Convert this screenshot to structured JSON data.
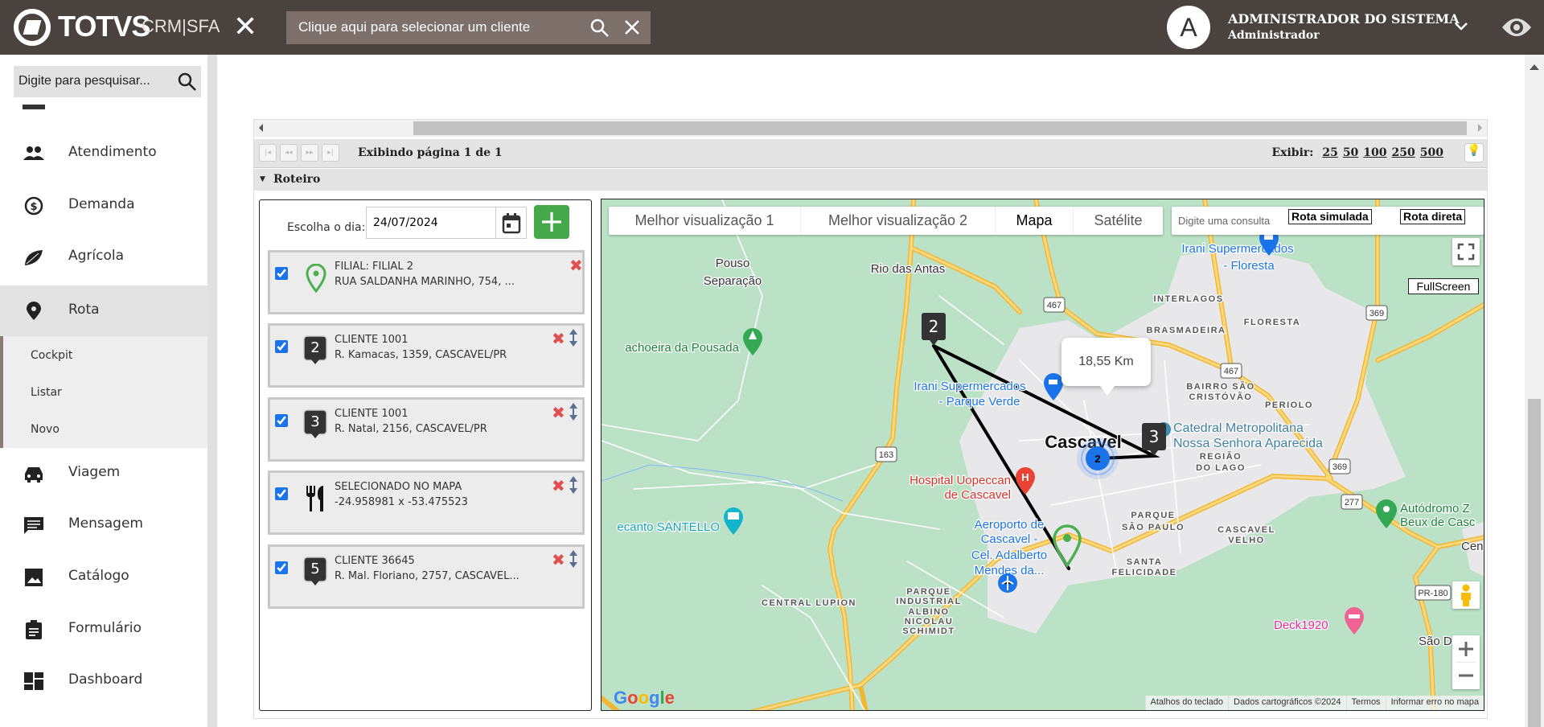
{
  "header": {
    "brand": "TOTVS",
    "product": "CRM|SFA",
    "client_search_placeholder": "Clique aqui para selecionar um cliente",
    "avatar_letter": "A",
    "user_name": "ADMINISTRADOR DO SISTEMA",
    "user_role": "Administrador"
  },
  "sidebar": {
    "search_placeholder": "Digite para pesquisar...",
    "items": [
      {
        "label": "Atendimento",
        "icon": "people-icon"
      },
      {
        "label": "Demanda",
        "icon": "money-cycle-icon"
      },
      {
        "label": "Agrícola",
        "icon": "leaf-icon"
      },
      {
        "label": "Rota",
        "icon": "location-pin-icon",
        "active": true
      },
      {
        "label": "Viagem",
        "icon": "car-icon"
      },
      {
        "label": "Mensagem",
        "icon": "message-icon"
      },
      {
        "label": "Catálogo",
        "icon": "image-icon"
      },
      {
        "label": "Formulário",
        "icon": "clipboard-icon"
      },
      {
        "label": "Dashboard",
        "icon": "dashboard-icon"
      }
    ],
    "rota_submenu": [
      "Cockpit",
      "Listar",
      "Novo"
    ]
  },
  "pager": {
    "info": "Exibindo página 1 de 1",
    "exibir_label": "Exibir:",
    "page_sizes": [
      "25",
      "50",
      "100",
      "250",
      "500"
    ]
  },
  "roteiro": {
    "title": "Roteiro",
    "day_label": "Escolha o dia:",
    "day_value": "24/07/2024",
    "add_label": "+",
    "stops": [
      {
        "marker": "pin",
        "title": "FILIAL: FILIAL 2",
        "address": "RUA SALDANHA MARINHO, 754, ...",
        "checked": true
      },
      {
        "marker": "2",
        "title": "CLIENTE 1001",
        "address": "R. Kamacas, 1359, CASCAVEL/PR",
        "checked": true
      },
      {
        "marker": "3",
        "title": "CLIENTE 1001",
        "address": "R. Natal, 2156, CASCAVEL/PR",
        "checked": true
      },
      {
        "marker": "restaurant",
        "title": "SELECIONADO NO MAPA",
        "address": "-24.958981 x -53.475523",
        "checked": true
      },
      {
        "marker": "5",
        "title": "CLIENTE 36645",
        "address": "R. Mal. Floriano, 2757, CASCAVEL...",
        "checked": true
      }
    ]
  },
  "map": {
    "map_types": [
      "Melhor visualização 1",
      "Melhor visualização 2",
      "Mapa",
      "Satélite"
    ],
    "selected_type": "Mapa",
    "search_placeholder": "Digite uma consulta",
    "rota_simulada": "Rota simulada",
    "rota_direta": "Rota direta",
    "fullscreen_label": "FullScreen",
    "distance": "18,55 Km",
    "markers": [
      "2",
      "3"
    ],
    "cluster_count": "2",
    "shields": [
      "467",
      "467",
      "369",
      "369",
      "163",
      "277",
      "PR-180"
    ],
    "labels": [
      "Pouso",
      "Separação",
      "Rio das Antas",
      "Irani Supermercados",
      "- Floresta",
      "INTERLAGOS",
      "FLORESTA",
      "BRASMADEIRA",
      "achoeira da Pousada",
      "Irani Supermercados",
      "- Parque Verde",
      "BAIRRO SÃO",
      "CRISTÓVÃO",
      "PERIOLO",
      "Catedral Metropolitana",
      "Nossa Senhora Aparecida",
      "Cascavel",
      "REGIÃO",
      "DO LAGO",
      "Hospital Uopeccan",
      "de Cascavel",
      "Autódromo Z",
      "Beux de Casc",
      "Cen",
      "ecanto SANTELLO",
      "Aeroporto de",
      "Cascavel -",
      "Cel. Adalberto",
      "Mendes da...",
      "PARQUE",
      "SÃO PAULO",
      "CASCAVEL",
      "VELHO",
      "SANTA",
      "FELICIDADE",
      "CENTRAL LUPION",
      "PARQUE",
      "INDUSTRIAL",
      "ALBINO",
      "NICOLAU",
      "SCHIMIDT",
      "Deck1920",
      "São D"
    ],
    "google_logo": "Google",
    "footer": [
      "Atalhos do teclado",
      "Dados cartográficos ©2024",
      "Termos",
      "Informar erro no mapa"
    ],
    "colors": {
      "land": "#bbe2c6",
      "urban": "#e8e8ea",
      "road": "#fcd36b",
      "route": "#000000"
    }
  }
}
